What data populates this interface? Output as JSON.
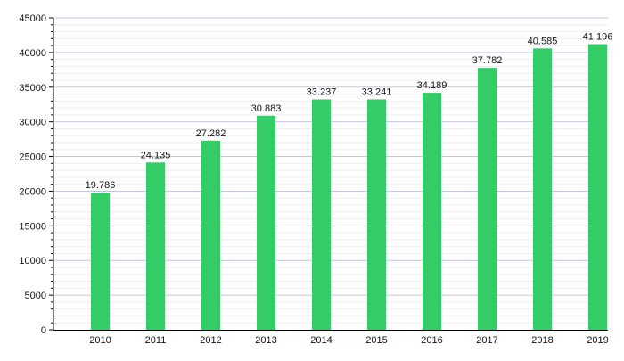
{
  "chart_data": {
    "type": "bar",
    "title": "",
    "xlabel": "",
    "ylabel": "",
    "categories": [
      "2010",
      "2011",
      "2012",
      "2013",
      "2014",
      "2015",
      "2016",
      "2017",
      "2018",
      "2019"
    ],
    "values": [
      19786,
      24135,
      27282,
      30883,
      33237,
      33241,
      34189,
      37782,
      40585,
      41196
    ],
    "data_labels": [
      "19.786",
      "24.135",
      "27.282",
      "30.883",
      "33.237",
      "33.241",
      "34.189",
      "37.782",
      "40.585",
      "41.196"
    ],
    "ylim": [
      0,
      45000
    ],
    "yticks": [
      0,
      5000,
      10000,
      15000,
      20000,
      25000,
      30000,
      35000,
      40000,
      45000
    ],
    "ytick_labels": [
      "0",
      "5000",
      "10000",
      "15000",
      "20000",
      "25000",
      "30000",
      "35000",
      "40000",
      "45000"
    ],
    "minor_tick_step": 1000,
    "grid": true,
    "legend": "none",
    "colors": {
      "bar": "#33cc66",
      "grid_major": "#c4c4e6",
      "grid_minor": "#eeeef4",
      "axis": "#000000"
    }
  }
}
